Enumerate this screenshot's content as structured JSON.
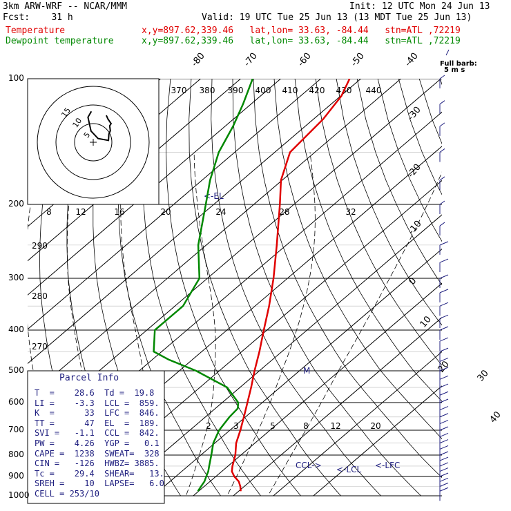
{
  "header": {
    "line1_left": "3km ARW-WRF -- NCAR/MMM",
    "line1_right": "Init: 12 UTC Mon 24 Jun 13",
    "line2_left": "Fcst:    31 h",
    "line2_right": "Valid: 19 UTC Tue 25 Jun 13 (13 MDT Tue 25 Jun 13)",
    "temp_label": "Temperature",
    "temp_info": "x,y=897.62,339.46   lat,lon= 33.63, -84.44   stn=ATL ,72219",
    "dew_label": "Dewpoint temperature",
    "dew_info": "x,y=897.62,339.46   lat,lon= 33.63, -84.44   stn=ATL ,72219"
  },
  "colors": {
    "temperature": "#e00000",
    "dewpoint": "#008800",
    "parcel_box": "#202080"
  },
  "chart_data": {
    "type": "line",
    "subtype": "skew-t log-p sounding",
    "y_axis_label": "",
    "pressure_levels": [
      "100",
      "200",
      "300",
      "400",
      "500",
      "600",
      "700",
      "800",
      "900",
      "1000"
    ],
    "skewed_isotherm_labels": [
      "-80",
      "-70",
      "-60",
      "-50",
      "-40",
      "-30",
      "-20",
      "-10",
      "0",
      "10",
      "20",
      "30",
      "40"
    ],
    "theta_labels": [
      "370",
      "380",
      "390",
      "400",
      "410",
      "420",
      "430",
      "440"
    ],
    "theta_labels_left": [
      "290",
      "280",
      "270"
    ],
    "wind_speed_labels": [
      "8",
      "12",
      "16",
      "20",
      "24",
      "28",
      "32"
    ],
    "wind_speed_unit": "kts",
    "mixing_ratio_labels": [
      "2",
      "3",
      "5",
      "8",
      "12",
      "20"
    ],
    "hodograph_rings": [
      "5",
      "10",
      "15"
    ],
    "barb_legend_line1": "Full barb:",
    "barb_legend_line2": "5 m s",
    "annotations": {
      "el": "<-EL",
      "ccl": "CCL->",
      "lcl": "<-LCL",
      "lfc": "<-LFC",
      "m": "M"
    },
    "series": [
      {
        "name": "Temperature",
        "points": [
          [
            975,
            30.5
          ],
          [
            950,
            29
          ],
          [
            925,
            27.2
          ],
          [
            900,
            24.6
          ],
          [
            875,
            22.5
          ],
          [
            850,
            21.1
          ],
          [
            800,
            18.6
          ],
          [
            750,
            15.3
          ],
          [
            700,
            12.6
          ],
          [
            650,
            9.6
          ],
          [
            600,
            6.3
          ],
          [
            550,
            2.8
          ],
          [
            500,
            -1.2
          ],
          [
            450,
            -5.6
          ],
          [
            400,
            -10.8
          ],
          [
            350,
            -16.5
          ],
          [
            300,
            -23.5
          ],
          [
            250,
            -32.4
          ],
          [
            200,
            -43.5
          ],
          [
            175,
            -50.3
          ],
          [
            150,
            -56.2
          ],
          [
            125,
            -57.6
          ],
          [
            110,
            -59.8
          ],
          [
            100,
            -62.8
          ]
        ]
      },
      {
        "name": "Dewpoint temperature",
        "points": [
          [
            975,
            19.8
          ],
          [
            950,
            19.2
          ],
          [
            925,
            18.6
          ],
          [
            900,
            17.6
          ],
          [
            875,
            16.6
          ],
          [
            850,
            15.3
          ],
          [
            800,
            12.6
          ],
          [
            750,
            9.6
          ],
          [
            700,
            7.3
          ],
          [
            650,
            6
          ],
          [
            620,
            5.6
          ],
          [
            600,
            4
          ],
          [
            550,
            -3.2
          ],
          [
            500,
            -15.8
          ],
          [
            470,
            -26
          ],
          [
            450,
            -32
          ],
          [
            400,
            -38
          ],
          [
            350,
            -38
          ],
          [
            300,
            -42
          ],
          [
            250,
            -52
          ],
          [
            200,
            -62
          ],
          [
            175,
            -68
          ],
          [
            150,
            -74
          ],
          [
            130,
            -78
          ],
          [
            115,
            -82
          ],
          [
            100,
            -87
          ]
        ]
      }
    ]
  },
  "hodograph": {
    "points": [
      [
        -0.5,
        8.3
      ],
      [
        -1.4,
        6.7
      ],
      [
        -0.6,
        3.0
      ],
      [
        1.3,
        1.0
      ],
      [
        4.1,
        0.5
      ],
      [
        4.2,
        2.2
      ],
      [
        4.6,
        3.1
      ],
      [
        4.4,
        4.4
      ],
      [
        4.8,
        5.0
      ],
      [
        3.9,
        6.3
      ],
      [
        3.7,
        6.8
      ],
      [
        3.5,
        7.2
      ]
    ]
  },
  "wind_barbs": {
    "pressures": [
      100,
      115,
      130,
      150,
      175,
      200,
      225,
      250,
      275,
      300,
      325,
      350,
      375,
      400,
      425,
      450,
      475,
      500,
      525,
      550,
      575,
      600,
      625,
      650,
      675,
      700,
      725,
      750,
      775,
      800,
      825,
      850,
      875,
      900,
      925,
      950,
      975
    ],
    "speeds_ms": [
      5,
      5,
      5,
      5,
      5,
      5,
      5,
      10,
      10,
      10,
      10,
      10,
      10,
      10,
      10,
      10,
      10,
      10,
      10,
      10,
      10,
      10,
      10,
      10,
      10,
      10,
      10,
      10,
      10,
      10,
      10,
      10,
      10,
      10,
      10,
      10,
      10
    ]
  },
  "parcel": {
    "title": "Parcel Info",
    "rows": [
      "T  =    28.6  Td =  19.8",
      "LI =    -3.3  LCL =  859.",
      "K  =      33  LFC =  846.",
      "TT =      47  EL  =  189.",
      "SVI =   -1.1  CCL =  842.",
      "PW =    4.26  YGP =   0.1",
      "CAPE =  1238  SWEAT=  328",
      "CIN =   -126  HWBZ= 3885.",
      "Tc =    29.4  SHEAR=   13.",
      "SREH =    10  LAPSE=   6.0",
      "CELL = 253/10"
    ]
  }
}
